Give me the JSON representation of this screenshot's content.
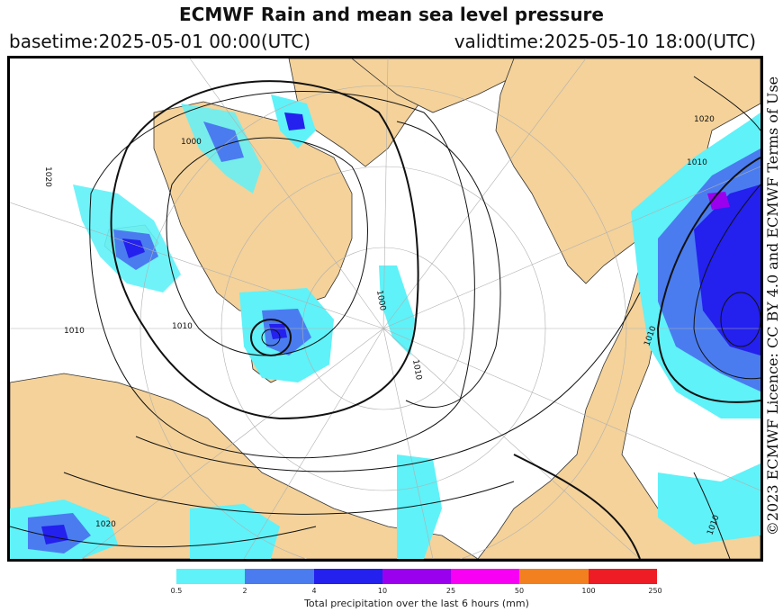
{
  "header": {
    "title": "ECMWF Rain and mean sea level pressure",
    "basetime": "basetime:2025-05-01 00:00(UTC)",
    "validtime": "validtime:2025-05-10 18:00(UTC)"
  },
  "credit": "©2023 ECMWF Licence: CC BY 4.0 and ECMWF Terms of Use",
  "map": {
    "land_color": "#f4d29a",
    "ocean_color": "#ffffff",
    "isobar_labels": [
      "1020",
      "1010",
      "1000",
      "1020",
      "1010",
      "1010",
      "1000",
      "1020",
      "1010",
      "1010",
      "1010"
    ]
  },
  "legend": {
    "ticks": [
      "0.5",
      "2",
      "4",
      "10",
      "25",
      "50",
      "100",
      "250"
    ],
    "colors": [
      "#5ff2f8",
      "#4a7cf0",
      "#2420ee",
      "#9a00ee",
      "#f700f4",
      "#f3801f",
      "#ee1c24"
    ],
    "caption": "Total precipitation over the last 6 hours (mm)"
  }
}
